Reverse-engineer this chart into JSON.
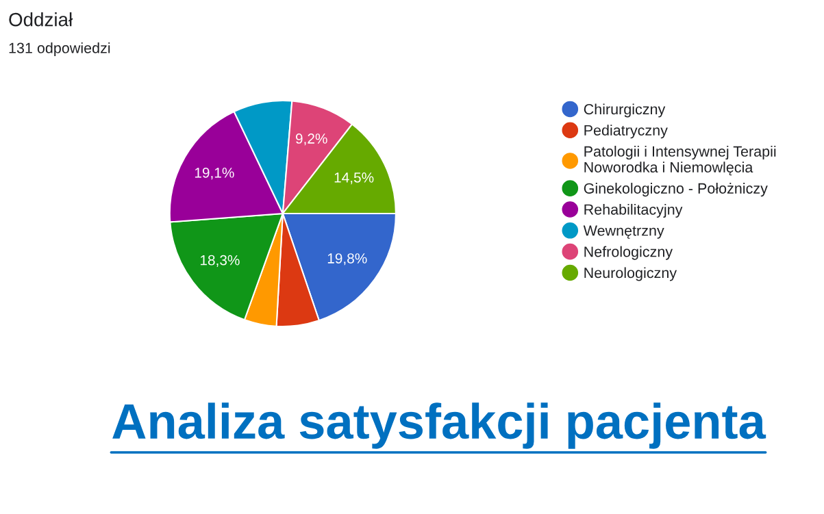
{
  "chart_data": {
    "type": "pie",
    "title": "Oddział",
    "subtitle": "131 odpowiedzi",
    "categories": [
      "Chirurgiczny",
      "Pediatryczny",
      "Patologii i Intensywnej Terapii\nNoworodka i Niemowlęcia",
      "Ginekologiczno - Położniczy",
      "Rehabilitacyjny",
      "Wewnętrzny",
      "Nefrologiczny",
      "Neurologiczny"
    ],
    "values": [
      19.8,
      6.1,
      4.6,
      18.3,
      19.1,
      8.4,
      9.2,
      14.5
    ],
    "value_labels": [
      "19,8%",
      null,
      null,
      "18,3%",
      "19,1%",
      null,
      "9,2%",
      "14,5%"
    ],
    "colors": [
      "#3366cc",
      "#dc3912",
      "#ff9900",
      "#109618",
      "#990099",
      "#0099c6",
      "#dd4477",
      "#66aa00"
    ],
    "legend": "right",
    "annotations": [
      "Analiza satysfakcji pacjenta"
    ]
  }
}
